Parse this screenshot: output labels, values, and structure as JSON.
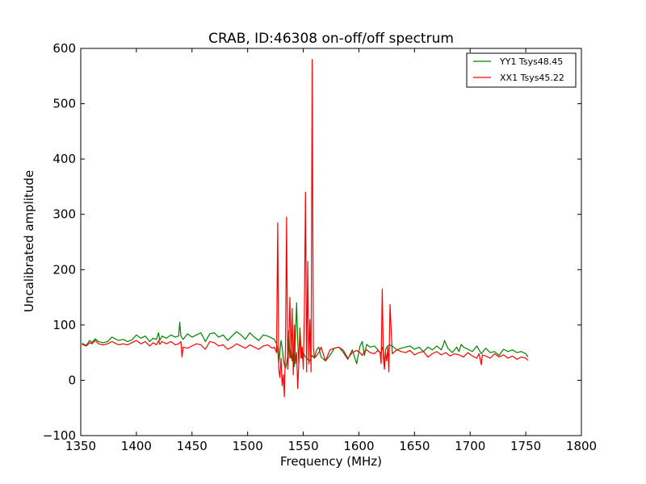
{
  "chart_data": {
    "type": "line",
    "title": "CRAB, ID:46308 on-off/off spectrum",
    "xlabel": "Frequency (MHz)",
    "ylabel": "Uncalibrated amplitude",
    "xlim": [
      1350,
      1800
    ],
    "ylim": [
      -100,
      600
    ],
    "xticks": [
      1350,
      1400,
      1450,
      1500,
      1550,
      1600,
      1650,
      1700,
      1750,
      1800
    ],
    "yticks": [
      -100,
      0,
      100,
      200,
      300,
      400,
      500,
      600
    ],
    "xtick_labels": [
      "1350",
      "1400",
      "1450",
      "1500",
      "1550",
      "1600",
      "1650",
      "1700",
      "1750",
      "1800"
    ],
    "ytick_labels": [
      "−100",
      "0",
      "100",
      "200",
      "300",
      "400",
      "500",
      "600"
    ],
    "grid": false,
    "legend_position": "top-right",
    "series": [
      {
        "name": "YY1 Tsys48.45",
        "color": "#008000",
        "x": [
          1351,
          1355,
          1358,
          1360,
          1363,
          1366,
          1370,
          1374,
          1378,
          1380,
          1384,
          1388,
          1392,
          1396,
          1400,
          1404,
          1408,
          1412,
          1415,
          1418,
          1420,
          1421,
          1423,
          1427,
          1431,
          1435,
          1438,
          1439,
          1440,
          1442,
          1446,
          1450,
          1454,
          1458,
          1462,
          1466,
          1470,
          1474,
          1478,
          1482,
          1486,
          1490,
          1494,
          1498,
          1502,
          1506,
          1510,
          1514,
          1518,
          1522,
          1524,
          1526,
          1527,
          1528,
          1529,
          1530,
          1531,
          1532,
          1533,
          1534,
          1535,
          1536,
          1537,
          1538,
          1539,
          1540,
          1541,
          1542,
          1543,
          1544,
          1545,
          1546,
          1547,
          1548,
          1549,
          1550,
          1552,
          1554,
          1556,
          1558,
          1560,
          1562,
          1564,
          1566,
          1570,
          1574,
          1578,
          1582,
          1586,
          1590,
          1594,
          1598,
          1601,
          1603,
          1605,
          1607,
          1610,
          1614,
          1617,
          1620,
          1621,
          1622,
          1623,
          1624,
          1625,
          1627,
          1630,
          1634,
          1638,
          1642,
          1646,
          1650,
          1654,
          1658,
          1662,
          1666,
          1670,
          1674,
          1676,
          1677,
          1680,
          1684,
          1688,
          1690,
          1692,
          1694,
          1698,
          1702,
          1706,
          1710,
          1714,
          1718,
          1722,
          1726,
          1730,
          1734,
          1738,
          1742,
          1746,
          1750,
          1752
        ],
        "y": [
          67,
          63,
          72,
          68,
          75,
          70,
          68,
          70,
          78,
          76,
          72,
          74,
          70,
          73,
          82,
          76,
          80,
          70,
          76,
          74,
          86,
          72,
          80,
          76,
          82,
          78,
          80,
          105,
          80,
          74,
          84,
          78,
          82,
          86,
          70,
          84,
          86,
          78,
          82,
          72,
          80,
          88,
          82,
          74,
          86,
          78,
          72,
          82,
          80,
          76,
          74,
          66,
          55,
          30,
          50,
          72,
          60,
          40,
          28,
          22,
          30,
          45,
          90,
          40,
          60,
          35,
          55,
          25,
          80,
          140,
          70,
          30,
          95,
          60,
          40,
          50,
          42,
          38,
          35,
          45,
          40,
          55,
          60,
          42,
          35,
          45,
          58,
          60,
          50,
          38,
          55,
          30,
          62,
          70,
          45,
          65,
          60,
          62,
          55,
          48,
          60,
          52,
          25,
          55,
          60,
          64,
          62,
          55,
          58,
          60,
          62,
          56,
          60,
          52,
          60,
          55,
          62,
          55,
          65,
          72,
          58,
          50,
          60,
          52,
          65,
          60,
          56,
          52,
          62,
          48,
          58,
          50,
          52,
          45,
          56,
          52,
          55,
          50,
          52,
          48,
          42
        ],
        "label_text": "YY1 Tsys48.45"
      },
      {
        "name": "XX1 Tsys45.22",
        "color": "#ff0000",
        "x": [
          1351,
          1355,
          1358,
          1360,
          1363,
          1366,
          1370,
          1374,
          1378,
          1380,
          1384,
          1388,
          1392,
          1396,
          1400,
          1404,
          1408,
          1412,
          1415,
          1418,
          1420,
          1421,
          1423,
          1427,
          1431,
          1435,
          1438,
          1440,
          1441,
          1442,
          1446,
          1450,
          1454,
          1458,
          1462,
          1466,
          1470,
          1474,
          1478,
          1482,
          1486,
          1490,
          1494,
          1498,
          1502,
          1506,
          1510,
          1514,
          1518,
          1522,
          1524,
          1526,
          1527,
          1528,
          1529,
          1530,
          1531,
          1532,
          1533,
          1534,
          1535,
          1536,
          1537,
          1538,
          1539,
          1540,
          1541,
          1542,
          1543,
          1544,
          1545,
          1546,
          1547,
          1548,
          1549,
          1550,
          1551,
          1552,
          1553,
          1554,
          1555,
          1556,
          1557,
          1558,
          1559,
          1560,
          1562,
          1564,
          1566,
          1570,
          1574,
          1578,
          1582,
          1586,
          1590,
          1594,
          1598,
          1601,
          1603,
          1605,
          1607,
          1610,
          1614,
          1617,
          1619,
          1620,
          1621,
          1622,
          1623,
          1624,
          1625,
          1626,
          1627,
          1628,
          1630,
          1634,
          1638,
          1642,
          1646,
          1650,
          1654,
          1658,
          1662,
          1666,
          1670,
          1674,
          1678,
          1682,
          1686,
          1690,
          1694,
          1698,
          1702,
          1706,
          1708,
          1710,
          1711,
          1714,
          1718,
          1722,
          1726,
          1730,
          1734,
          1738,
          1742,
          1746,
          1750,
          1752
        ],
        "y": [
          65,
          62,
          68,
          66,
          72,
          66,
          64,
          66,
          70,
          68,
          64,
          66,
          64,
          68,
          72,
          66,
          70,
          62,
          68,
          64,
          72,
          65,
          70,
          66,
          70,
          64,
          66,
          70,
          42,
          60,
          58,
          62,
          66,
          64,
          56,
          70,
          68,
          62,
          64,
          56,
          60,
          66,
          62,
          58,
          64,
          60,
          56,
          62,
          64,
          58,
          60,
          50,
          285,
          20,
          5,
          40,
          -10,
          10,
          -30,
          60,
          295,
          20,
          60,
          150,
          40,
          130,
          10,
          100,
          30,
          50,
          -15,
          30,
          90,
          40,
          60,
          20,
          120,
          340,
          15,
          215,
          30,
          110,
          15,
          580,
          60,
          40,
          45,
          50,
          60,
          35,
          55,
          58,
          60,
          54,
          40,
          50,
          54,
          50,
          45,
          52,
          55,
          50,
          48,
          54,
          50,
          30,
          165,
          40,
          20,
          50,
          35,
          60,
          15,
          137,
          48,
          55,
          52,
          50,
          54,
          46,
          50,
          52,
          42,
          48,
          52,
          46,
          50,
          44,
          48,
          46,
          42,
          50,
          44,
          40,
          48,
          28,
          46,
          44,
          40,
          48,
          42,
          46,
          40,
          44,
          38,
          42,
          40,
          36
        ],
        "label_text": "XX1 Tsys45.22"
      }
    ]
  }
}
